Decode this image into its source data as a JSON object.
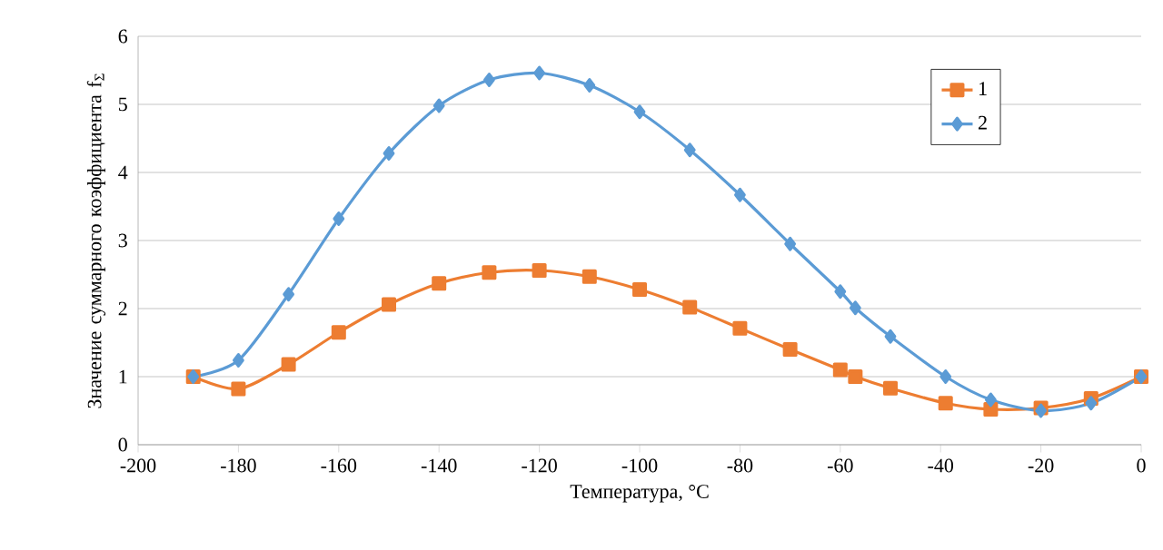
{
  "chart_data": {
    "type": "line",
    "xlabel": "Температура, °C",
    "ylabel": "Значение суммарного коэффициента f$_{Σ}$",
    "xlim": [
      -200,
      0
    ],
    "xticks": [
      -200,
      -180,
      -160,
      -140,
      -120,
      -100,
      -80,
      -60,
      -40,
      -20,
      0
    ],
    "ylim": [
      0,
      6
    ],
    "yticks": [
      0,
      1,
      2,
      3,
      4,
      5,
      6
    ],
    "grid": "y",
    "legend": "top right",
    "x": [
      -189,
      -180,
      -170,
      -160,
      -150,
      -140,
      -130,
      -120,
      -110,
      -100,
      -90,
      -80,
      -70,
      -60,
      -57,
      -50,
      -39,
      -30,
      -20,
      -10,
      0
    ],
    "series": [
      {
        "name": "1",
        "color": "#ed7d31",
        "marker": "square",
        "values": [
          1.0,
          0.82,
          1.18,
          1.65,
          2.06,
          2.37,
          2.53,
          2.56,
          2.47,
          2.28,
          2.02,
          1.71,
          1.4,
          1.1,
          1.0,
          0.83,
          0.61,
          0.52,
          0.54,
          0.68,
          1.0
        ]
      },
      {
        "name": "2",
        "color": "#5b9bd5",
        "marker": "diamond",
        "values": [
          1.0,
          1.24,
          2.21,
          3.32,
          4.28,
          4.98,
          5.36,
          5.46,
          5.28,
          4.89,
          4.33,
          3.67,
          2.95,
          2.25,
          2.01,
          1.59,
          1.0,
          0.66,
          0.5,
          0.61,
          1.0
        ]
      }
    ]
  }
}
